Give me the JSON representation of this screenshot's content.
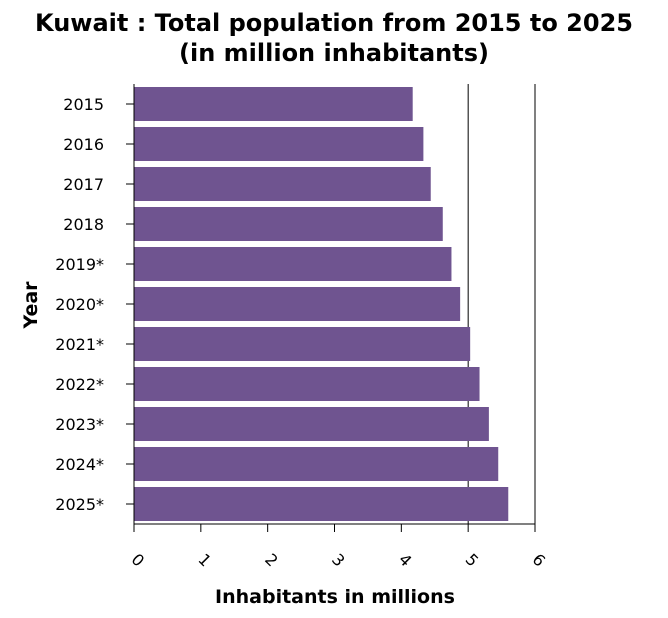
{
  "chart_data": {
    "type": "bar",
    "orientation": "horizontal",
    "title_line1": "Kuwait : Total population from 2015 to 2025",
    "title_line2": "(in million inhabitants)",
    "xlabel": "Inhabitants in millions",
    "ylabel": "Year",
    "xlim": [
      0,
      6
    ],
    "xticks": [
      "0",
      "1",
      "2",
      "3",
      "4",
      "5",
      "6"
    ],
    "categories": [
      "2015",
      "2016",
      "2017",
      "2018",
      "2019*",
      "2020*",
      "2021*",
      "2022*",
      "2023*",
      "2024*",
      "2025*"
    ],
    "values": [
      4.17,
      4.33,
      4.44,
      4.62,
      4.75,
      4.88,
      5.03,
      5.17,
      5.31,
      5.45,
      5.6
    ],
    "bar_color": "#6f5490",
    "grid": "vertical line at 5",
    "legend": "none"
  }
}
